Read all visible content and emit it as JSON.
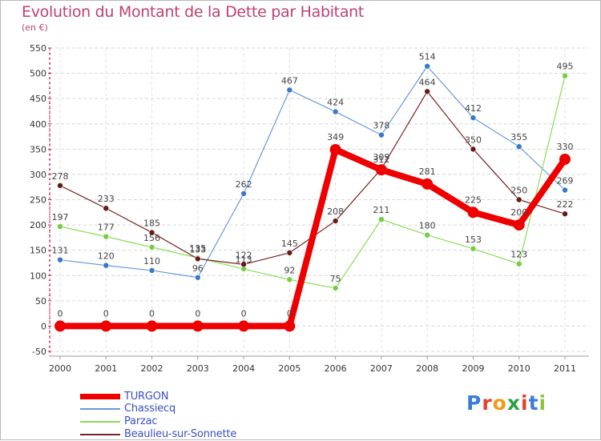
{
  "title": "Evolution du Montant de la Dette par Habitant",
  "subtitle": "(en €)",
  "logo": "Proxiti",
  "chart_data": {
    "type": "line",
    "title": "Evolution du Montant de la Dette par Habitant",
    "ylabel": "(en €)",
    "xlabel": "",
    "ylim": [
      -50,
      550
    ],
    "yticks": [
      -50,
      0,
      50,
      100,
      150,
      200,
      250,
      300,
      350,
      400,
      450,
      500,
      550
    ],
    "grid": "horizontal dashed",
    "legend_position": "bottom-left",
    "x": [
      "2000",
      "2001",
      "2002",
      "2003",
      "2004",
      "2005",
      "2006",
      "2007",
      "2008",
      "2009",
      "2010",
      "2011"
    ],
    "series": [
      {
        "name": "TURGON",
        "color": "#ee0000",
        "marker_color": "#ee0000",
        "line_width": 8,
        "marker_r": 7,
        "values": [
          0,
          0,
          0,
          0,
          0,
          0,
          349,
          309,
          281,
          225,
          200,
          330
        ],
        "labels": [
          "0",
          "0",
          "0",
          "0",
          "0",
          "0",
          "349",
          "309",
          "281",
          "225",
          "200",
          "330"
        ]
      },
      {
        "name": "Chassiecq",
        "color": "#6699dd",
        "marker_color": "#3a78c8",
        "line_width": 1.2,
        "marker_r": 3.5,
        "values": [
          131,
          120,
          110,
          96,
          262,
          467,
          424,
          378,
          514,
          412,
          355,
          269
        ],
        "labels": [
          "131",
          "120",
          "110",
          "96",
          "262",
          "467",
          "424",
          "378",
          "514",
          "412",
          "355",
          "269"
        ]
      },
      {
        "name": "Parzac",
        "color": "#88dd55",
        "marker_color": "#77cc44",
        "line_width": 1.2,
        "marker_r": 3.5,
        "values": [
          197,
          177,
          156,
          135,
          113,
          92,
          75,
          211,
          180,
          153,
          123,
          495
        ],
        "labels": [
          "197",
          "177",
          "156",
          "135",
          "113",
          "92",
          "75",
          "211",
          "180",
          "153",
          "123",
          "495"
        ]
      },
      {
        "name": "Beaulieu-sur-Sonnette",
        "color": "#772222",
        "marker_color": "#661a1a",
        "line_width": 1.2,
        "marker_r": 3.5,
        "values": [
          278,
          233,
          185,
          133,
          122,
          145,
          208,
          311,
          464,
          350,
          250,
          222
        ],
        "labels": [
          "278",
          "233",
          "185",
          "133",
          "122",
          "145",
          "208",
          "311",
          "464",
          "350",
          "250",
          "222"
        ]
      }
    ]
  }
}
